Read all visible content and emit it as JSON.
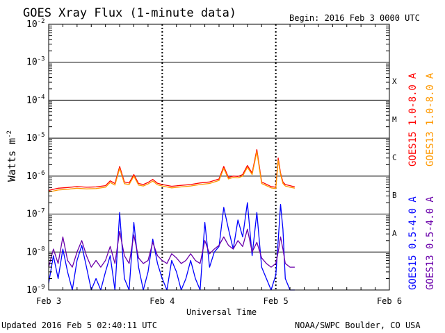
{
  "header": {
    "title": "GOES Xray Flux (1-minute data)",
    "begin": "Begin:  2016 Feb 3 0000 UTC"
  },
  "footer": {
    "updated": "Updated 2016 Feb  5 02:40:11 UTC",
    "source": "NOAA/SWPC Boulder, CO USA"
  },
  "colors": {
    "goes15_long": "#ff0000",
    "goes13_long": "#ff9900",
    "goes15_short": "#0000ff",
    "goes13_short": "#6a00aa"
  },
  "chart_data": {
    "type": "line",
    "title": "GOES Xray Flux (1-minute data)",
    "xlabel": "Universal Time",
    "ylabel": "Watts m",
    "ylabel_sup": "-2",
    "yscale": "log",
    "ylim": [
      1e-09,
      0.01
    ],
    "xlim": [
      0,
      72
    ],
    "x_unit": "hours since 2016 Feb 3 0000 UTC",
    "x_ticks": [
      {
        "x": 0,
        "label": "Feb 3"
      },
      {
        "x": 24,
        "label": "Feb 4"
      },
      {
        "x": 48,
        "label": "Feb 5"
      },
      {
        "x": 72,
        "label": "Feb 6"
      }
    ],
    "y_ticks": [
      {
        "exp": -2,
        "base": "10",
        "sup": "-2"
      },
      {
        "exp": -3,
        "base": "10",
        "sup": "-3"
      },
      {
        "exp": -4,
        "base": "10",
        "sup": "-4"
      },
      {
        "exp": -5,
        "base": "10",
        "sup": "-5"
      },
      {
        "exp": -6,
        "base": "10",
        "sup": "-6"
      },
      {
        "exp": -7,
        "base": "10",
        "sup": "-7"
      },
      {
        "exp": -8,
        "base": "10",
        "sup": "-8"
      },
      {
        "exp": -9,
        "base": "10",
        "sup": "-9"
      }
    ],
    "flare_classes": [
      {
        "label": "X",
        "exp": -3.5
      },
      {
        "label": "M",
        "exp": -4.5
      },
      {
        "label": "C",
        "exp": -5.5
      },
      {
        "label": "B",
        "exp": -6.5
      },
      {
        "label": "A",
        "exp": -7.5
      }
    ],
    "grid": true,
    "legend": "right",
    "series": [
      {
        "name": "GOES15 1.0-8.0 A",
        "color": "#ff0000",
        "x": [
          0,
          2,
          4,
          6,
          8,
          10,
          12,
          13,
          14,
          15,
          16,
          17,
          18,
          19,
          20,
          21,
          22,
          23,
          24,
          26,
          28,
          30,
          32,
          34,
          36,
          37,
          38,
          39,
          40,
          41,
          42,
          43,
          44,
          45,
          46,
          47,
          48,
          48.5,
          49,
          49.5,
          50,
          51,
          52
        ],
        "y": [
          4.2e-07,
          4.8e-07,
          5e-07,
          5.3e-07,
          5.1e-07,
          5.2e-07,
          5.6e-07,
          7.5e-07,
          6.4e-07,
          1.8e-06,
          7e-07,
          6.6e-07,
          1.1e-06,
          6.4e-07,
          6e-07,
          6.8e-07,
          8.2e-07,
          6.5e-07,
          6e-07,
          5.4e-07,
          5.7e-07,
          6e-07,
          6.6e-07,
          7e-07,
          8.4e-07,
          1.8e-06,
          9.2e-07,
          1e-06,
          9.8e-07,
          1.1e-06,
          1.9e-06,
          1.2e-06,
          5e-06,
          7e-07,
          6.1e-07,
          5.3e-07,
          5.1e-07,
          3e-06,
          1.2e-06,
          7e-07,
          6e-07,
          5.6e-07,
          5.2e-07
        ]
      },
      {
        "name": "GOES13 1.0-8.0 A",
        "color": "#ff9900",
        "x": [
          0,
          2,
          4,
          6,
          8,
          10,
          12,
          13,
          14,
          15,
          16,
          17,
          18,
          19,
          20,
          21,
          22,
          23,
          24,
          26,
          28,
          30,
          32,
          34,
          36,
          37,
          38,
          39,
          40,
          41,
          42,
          43,
          44,
          45,
          46,
          47,
          48,
          48.5,
          49,
          49.5,
          50,
          51,
          52
        ],
        "y": [
          3.8e-07,
          4.3e-07,
          4.5e-07,
          4.8e-07,
          4.6e-07,
          4.7e-07,
          5.1e-07,
          6.8e-07,
          5.8e-07,
          1.6e-06,
          6.3e-07,
          6e-07,
          1e-06,
          5.8e-07,
          5.5e-07,
          6.2e-07,
          7.4e-07,
          5.9e-07,
          5.5e-07,
          4.9e-07,
          5.2e-07,
          5.5e-07,
          6e-07,
          6.4e-07,
          7.7e-07,
          1.6e-06,
          8.4e-07,
          9.2e-07,
          9e-07,
          1e-06,
          1.7e-06,
          1.1e-06,
          4.4e-06,
          6.4e-07,
          5.6e-07,
          4.9e-07,
          4.7e-07,
          2.6e-06,
          1.1e-06,
          6.4e-07,
          5.5e-07,
          5.1e-07,
          4.8e-07
        ]
      },
      {
        "name": "GOES15 0.5-4.0 A",
        "color": "#0000ff",
        "x": [
          0,
          1,
          2,
          3,
          4,
          5,
          6,
          7,
          8,
          9,
          10,
          11,
          12,
          13,
          14,
          15,
          16,
          17,
          18,
          19,
          20,
          21,
          22,
          23,
          24,
          25,
          26,
          27,
          28,
          29,
          30,
          31,
          32,
          33,
          34,
          35,
          36,
          37,
          38,
          39,
          40,
          41,
          42,
          43,
          44,
          45,
          46,
          47,
          48,
          48.5,
          49,
          49.5,
          50,
          51,
          52
        ],
        "y": [
          1.5e-09,
          8e-09,
          2e-09,
          1.2e-08,
          3e-09,
          1e-09,
          6e-09,
          1.5e-08,
          4e-09,
          1e-09,
          2e-09,
          1e-09,
          3e-09,
          8e-09,
          1e-09,
          1.1e-07,
          2e-09,
          1e-09,
          6e-08,
          4e-09,
          1e-09,
          3e-09,
          2.2e-08,
          5e-09,
          2e-09,
          1e-09,
          6e-09,
          3e-09,
          1e-09,
          2e-09,
          6e-09,
          2e-09,
          1e-09,
          6e-08,
          4e-09,
          1e-08,
          1.4e-08,
          1.5e-07,
          4e-08,
          1.2e-08,
          7e-08,
          2.5e-08,
          2e-07,
          8e-09,
          1.1e-07,
          4e-09,
          2e-09,
          1e-09,
          2.5e-09,
          2e-08,
          1.8e-07,
          4e-08,
          2e-09,
          1e-09,
          1e-09
        ]
      },
      {
        "name": "GOES13 0.5-4.0 A",
        "color": "#6a00aa",
        "x": [
          0,
          1,
          2,
          3,
          4,
          5,
          6,
          7,
          8,
          9,
          10,
          11,
          12,
          13,
          14,
          15,
          16,
          17,
          18,
          19,
          20,
          21,
          22,
          23,
          24,
          25,
          26,
          27,
          28,
          29,
          30,
          31,
          32,
          33,
          34,
          35,
          36,
          37,
          38,
          39,
          40,
          41,
          42,
          43,
          44,
          45,
          46,
          47,
          48,
          48.5,
          49,
          49.5,
          50,
          51,
          52
        ],
        "y": [
          4e-09,
          1.2e-08,
          5e-09,
          2.5e-08,
          6e-09,
          4e-09,
          1e-08,
          2e-08,
          8e-09,
          4e-09,
          6e-09,
          4e-09,
          6e-09,
          1.4e-08,
          5e-09,
          3.5e-08,
          8e-09,
          5e-09,
          2.8e-08,
          7e-09,
          5e-09,
          6e-09,
          1.8e-08,
          8e-09,
          6e-09,
          5e-09,
          9e-09,
          7e-09,
          5e-09,
          6e-09,
          9e-09,
          6e-09,
          5e-09,
          2e-08,
          9e-09,
          1.2e-08,
          1.5e-08,
          2.5e-08,
          1.5e-08,
          1.2e-08,
          2e-08,
          1.4e-08,
          4e-08,
          1e-08,
          1.8e-08,
          7e-09,
          5e-09,
          4e-09,
          5e-09,
          1e-08,
          2.5e-08,
          1.2e-08,
          5e-09,
          4e-09,
          4e-09
        ]
      }
    ]
  }
}
